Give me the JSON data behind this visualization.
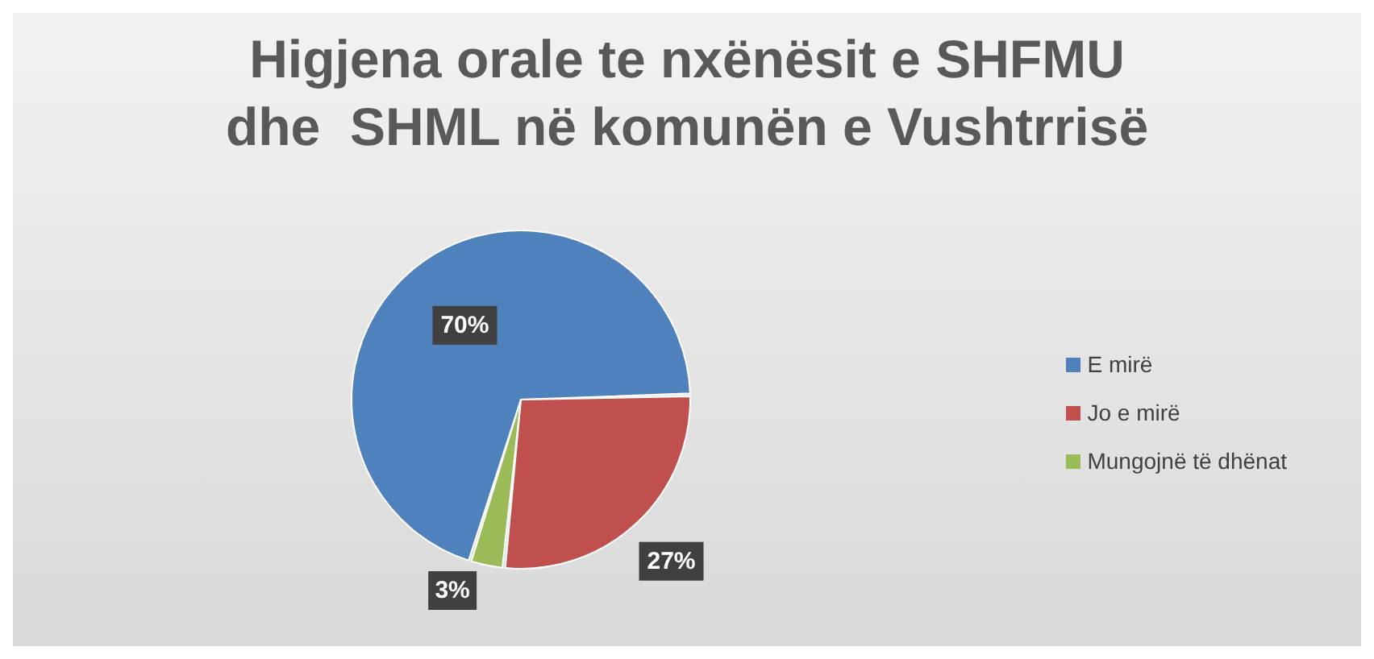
{
  "chart_data": {
    "type": "pie",
    "title": "Higjena orale te nxënësit e SHFMU\ndhe  SHML në komunën e Vushtrrisë",
    "categories": [
      "E mirë",
      "Jo e mirë",
      "Mungojnë të dhënat"
    ],
    "values": [
      70,
      27,
      3
    ],
    "colors": [
      "#4f81bd",
      "#c0504d",
      "#9bbb59"
    ],
    "value_labels": [
      "70%",
      "27%",
      "3%"
    ],
    "legend": "right"
  }
}
